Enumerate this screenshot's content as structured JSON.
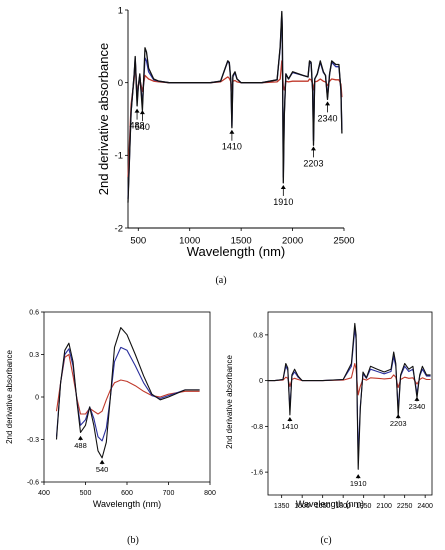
{
  "colors": {
    "black": "#111111",
    "blue": "#2a2f9c",
    "red": "#c0392b",
    "axis": "#000000"
  },
  "chart_data": [
    {
      "id": "a",
      "type": "line",
      "panel_label": "(a)",
      "xlabel": "Wavelength (nm)",
      "ylabel": "2nd derivative absorbance",
      "xlim": [
        400,
        2500
      ],
      "ylim": [
        -2,
        1
      ],
      "xticks": [
        500,
        1000,
        1500,
        2000,
        2500
      ],
      "yticks": [
        -2,
        -1,
        0,
        1
      ],
      "grid": false,
      "annotations": [
        {
          "text": "488",
          "x": 488,
          "y": -0.33
        },
        {
          "text": "540",
          "x": 540,
          "y": -0.35
        },
        {
          "text": "1410",
          "x": 1410,
          "y": -0.62
        },
        {
          "text": "1910",
          "x": 1910,
          "y": -1.38
        },
        {
          "text": "2203",
          "x": 2203,
          "y": -0.85
        },
        {
          "text": "2340",
          "x": 2340,
          "y": -0.23
        }
      ],
      "series": [
        {
          "color": "black",
          "x": [
            400,
            430,
            460,
            470,
            488,
            500,
            515,
            540,
            565,
            580,
            600,
            650,
            700,
            800,
            1000,
            1200,
            1300,
            1370,
            1385,
            1400,
            1410,
            1420,
            1440,
            1460,
            1500,
            1700,
            1850,
            1880,
            1895,
            1900,
            1910,
            1920,
            1935,
            1960,
            2000,
            2100,
            2150,
            2165,
            2180,
            2195,
            2203,
            2215,
            2240,
            2270,
            2300,
            2320,
            2340,
            2360,
            2380,
            2420,
            2450,
            2470,
            2480
          ],
          "y": [
            -1.65,
            -0.4,
            0.12,
            0.36,
            -0.32,
            -0.05,
            0.12,
            -0.38,
            0.48,
            0.42,
            0.2,
            0.05,
            0.02,
            0,
            0,
            0,
            0.02,
            0.3,
            0.28,
            0.02,
            -0.62,
            0.1,
            0.15,
            0.05,
            0,
            0,
            0.04,
            0.5,
            0.98,
            0.75,
            -1.38,
            -0.45,
            0.12,
            0.05,
            0.15,
            0.1,
            0.08,
            0.3,
            0.28,
            -0.1,
            -0.86,
            0.05,
            0.12,
            0.3,
            0.15,
            0.1,
            -0.23,
            0.12,
            0.3,
            0.25,
            0.25,
            -0.1,
            -0.7
          ]
        },
        {
          "color": "blue",
          "x": [
            400,
            430,
            460,
            470,
            488,
            500,
            515,
            540,
            565,
            580,
            600,
            650,
            700,
            800,
            1000,
            1200,
            1300,
            1370,
            1385,
            1400,
            1410,
            1420,
            1440,
            1460,
            1500,
            1700,
            1850,
            1880,
            1895,
            1900,
            1910,
            1920,
            1935,
            1960,
            2000,
            2100,
            2150,
            2165,
            2180,
            2195,
            2203,
            2215,
            2240,
            2270,
            2300,
            2320,
            2340,
            2360,
            2380,
            2420,
            2450,
            2470,
            2480
          ],
          "y": [
            -1.6,
            -0.4,
            0.12,
            0.34,
            -0.25,
            -0.05,
            0.1,
            -0.3,
            0.34,
            0.3,
            0.15,
            0.04,
            0.02,
            0,
            0,
            0,
            0.02,
            0.3,
            0.26,
            0.02,
            -0.6,
            0.08,
            0.14,
            0.05,
            0,
            0,
            0.04,
            0.48,
            0.95,
            0.72,
            -1.3,
            -0.42,
            0.12,
            0.05,
            0.14,
            0.1,
            0.08,
            0.28,
            0.26,
            -0.1,
            -0.8,
            0.05,
            0.12,
            0.28,
            0.14,
            0.1,
            -0.2,
            0.12,
            0.28,
            0.22,
            0.22,
            -0.1,
            -0.65
          ]
        },
        {
          "color": "red",
          "x": [
            400,
            430,
            460,
            470,
            488,
            500,
            515,
            540,
            565,
            580,
            600,
            650,
            700,
            800,
            1000,
            1200,
            1300,
            1370,
            1385,
            1400,
            1410,
            1420,
            1440,
            1460,
            1500,
            1700,
            1850,
            1880,
            1895,
            1900,
            1910,
            1920,
            1935,
            1960,
            2000,
            2100,
            2150,
            2165,
            2180,
            2195,
            2203,
            2215,
            2240,
            2270,
            2300,
            2320,
            2340,
            2360,
            2380,
            2420,
            2450,
            2470,
            2480
          ],
          "y": [
            -1.3,
            -0.3,
            0.05,
            0.3,
            -0.15,
            -0.06,
            0.05,
            -0.12,
            0.1,
            0.08,
            0.05,
            0.02,
            0.01,
            0,
            0,
            0,
            0.01,
            0.08,
            0.06,
            0.01,
            -0.1,
            0.02,
            0.03,
            0.01,
            0,
            0,
            0.01,
            0.05,
            0.3,
            0.2,
            -0.05,
            -0.1,
            0.02,
            0.01,
            0.02,
            0.02,
            0.02,
            0.05,
            0.04,
            -0.02,
            -0.1,
            0.01,
            0.02,
            0.05,
            0.02,
            0.01,
            -0.04,
            0.02,
            0.05,
            0.04,
            0.04,
            -0.02,
            -0.2
          ]
        }
      ]
    },
    {
      "id": "b",
      "type": "line",
      "panel_label": "(b)",
      "xlabel": "Wavelength (nm)",
      "ylabel": "2nd derivative absorbance",
      "xlim": [
        400,
        800
      ],
      "ylim": [
        -0.6,
        0.6
      ],
      "xticks": [
        400,
        500,
        600,
        700,
        800
      ],
      "yticks": [
        -0.6,
        -0.3,
        0,
        0.3,
        0.6
      ],
      "grid": false,
      "annotations": [
        {
          "text": "488",
          "x": 488,
          "y": -0.26
        },
        {
          "text": "540",
          "x": 540,
          "y": -0.43
        }
      ],
      "series": [
        {
          "color": "black",
          "x": [
            430,
            440,
            450,
            460,
            470,
            480,
            488,
            500,
            510,
            520,
            530,
            540,
            550,
            560,
            570,
            585,
            600,
            620,
            640,
            660,
            680,
            700,
            740,
            775
          ],
          "y": [
            -0.3,
            0.1,
            0.33,
            0.38,
            0.25,
            -0.05,
            -0.25,
            -0.2,
            -0.07,
            -0.2,
            -0.38,
            -0.43,
            -0.32,
            0,
            0.35,
            0.49,
            0.44,
            0.3,
            0.15,
            0.02,
            -0.02,
            0.0,
            0.05,
            0.05
          ]
        },
        {
          "color": "blue",
          "x": [
            430,
            440,
            450,
            460,
            470,
            480,
            488,
            500,
            510,
            520,
            530,
            540,
            550,
            560,
            570,
            585,
            600,
            620,
            640,
            660,
            680,
            700,
            740,
            775
          ],
          "y": [
            -0.28,
            0.1,
            0.3,
            0.34,
            0.22,
            -0.04,
            -0.2,
            -0.16,
            -0.07,
            -0.15,
            -0.28,
            -0.31,
            -0.22,
            0,
            0.25,
            0.35,
            0.33,
            0.22,
            0.1,
            0.01,
            -0.01,
            0.01,
            0.05,
            0.05
          ]
        },
        {
          "color": "red",
          "x": [
            430,
            440,
            450,
            460,
            470,
            480,
            488,
            500,
            510,
            520,
            530,
            540,
            550,
            560,
            570,
            585,
            600,
            620,
            640,
            660,
            680,
            700,
            740,
            775
          ],
          "y": [
            -0.1,
            0.1,
            0.28,
            0.3,
            0.15,
            -0.02,
            -0.12,
            -0.12,
            -0.08,
            -0.1,
            -0.12,
            -0.1,
            -0.02,
            0.05,
            0.1,
            0.12,
            0.11,
            0.08,
            0.04,
            0.01,
            0.0,
            0.02,
            0.04,
            0.04
          ]
        }
      ]
    },
    {
      "id": "c",
      "type": "line",
      "panel_label": "(c)",
      "xlabel": "Wavelength (nm)",
      "ylabel": "2nd derivative absorbance",
      "xlim": [
        1250,
        2450
      ],
      "ylim": [
        -2,
        1.2
      ],
      "xticks": [
        1350,
        1500,
        1650,
        1800,
        1950,
        2100,
        2250,
        2400
      ],
      "ytick_labels": [
        "0.8",
        "0",
        "-0.8",
        "-1.6"
      ],
      "yticks": [
        0.8,
        0,
        -0.8,
        -1.6
      ],
      "grid": false,
      "annotations": [
        {
          "text": "1410",
          "x": 1410,
          "y": -0.6
        },
        {
          "text": "1910",
          "x": 1910,
          "y": -1.6
        },
        {
          "text": "2203",
          "x": 2203,
          "y": -0.55
        },
        {
          "text": "2340",
          "x": 2340,
          "y": -0.25
        }
      ],
      "series": [
        {
          "color": "black",
          "x": [
            1250,
            1300,
            1360,
            1380,
            1395,
            1410,
            1425,
            1445,
            1470,
            1500,
            1650,
            1800,
            1860,
            1885,
            1895,
            1910,
            1925,
            1945,
            1970,
            2000,
            2050,
            2100,
            2150,
            2170,
            2185,
            2203,
            2220,
            2250,
            2280,
            2310,
            2340,
            2360,
            2380,
            2410,
            2440
          ],
          "y": [
            0,
            0,
            0.02,
            0.3,
            0.22,
            -0.6,
            0.1,
            0.2,
            0.08,
            0,
            0,
            0.02,
            0.3,
            1.0,
            0.8,
            -1.55,
            -0.5,
            0.15,
            0.05,
            0.25,
            0.2,
            0.15,
            0.2,
            0.5,
            0.3,
            -0.62,
            0.1,
            0.3,
            0.2,
            0.25,
            -0.3,
            0.1,
            0.25,
            0.1,
            0.1
          ]
        },
        {
          "color": "blue",
          "x": [
            1250,
            1300,
            1360,
            1380,
            1395,
            1410,
            1425,
            1445,
            1470,
            1500,
            1650,
            1800,
            1860,
            1885,
            1895,
            1910,
            1925,
            1945,
            1970,
            2000,
            2050,
            2100,
            2150,
            2170,
            2185,
            2203,
            2220,
            2250,
            2280,
            2310,
            2340,
            2360,
            2380,
            2410,
            2440
          ],
          "y": [
            0,
            0,
            0.02,
            0.25,
            0.18,
            -0.48,
            0.08,
            0.15,
            0.06,
            0,
            0,
            0.02,
            0.25,
            0.9,
            0.72,
            -1.35,
            -0.45,
            0.12,
            0.04,
            0.2,
            0.16,
            0.12,
            0.16,
            0.42,
            0.25,
            -0.5,
            0.08,
            0.25,
            0.16,
            0.2,
            -0.22,
            0.08,
            0.2,
            0.08,
            0.08
          ]
        },
        {
          "color": "red",
          "x": [
            1250,
            1300,
            1360,
            1380,
            1395,
            1410,
            1425,
            1445,
            1470,
            1500,
            1650,
            1800,
            1860,
            1885,
            1895,
            1910,
            1925,
            1945,
            1970,
            2000,
            2050,
            2100,
            2150,
            2170,
            2185,
            2203,
            2220,
            2250,
            2280,
            2310,
            2340,
            2360,
            2380,
            2410,
            2440
          ],
          "y": [
            0,
            0,
            0.01,
            0.06,
            0.04,
            -0.1,
            0.02,
            0.04,
            0.02,
            0,
            0,
            0.01,
            0.05,
            0.3,
            0.2,
            -0.25,
            -0.1,
            0.03,
            0.01,
            0.05,
            0.04,
            0.03,
            0.04,
            0.1,
            0.06,
            -0.12,
            0.02,
            0.06,
            0.04,
            0.05,
            -0.06,
            0.02,
            0.05,
            0.02,
            0.02
          ]
        }
      ]
    }
  ]
}
